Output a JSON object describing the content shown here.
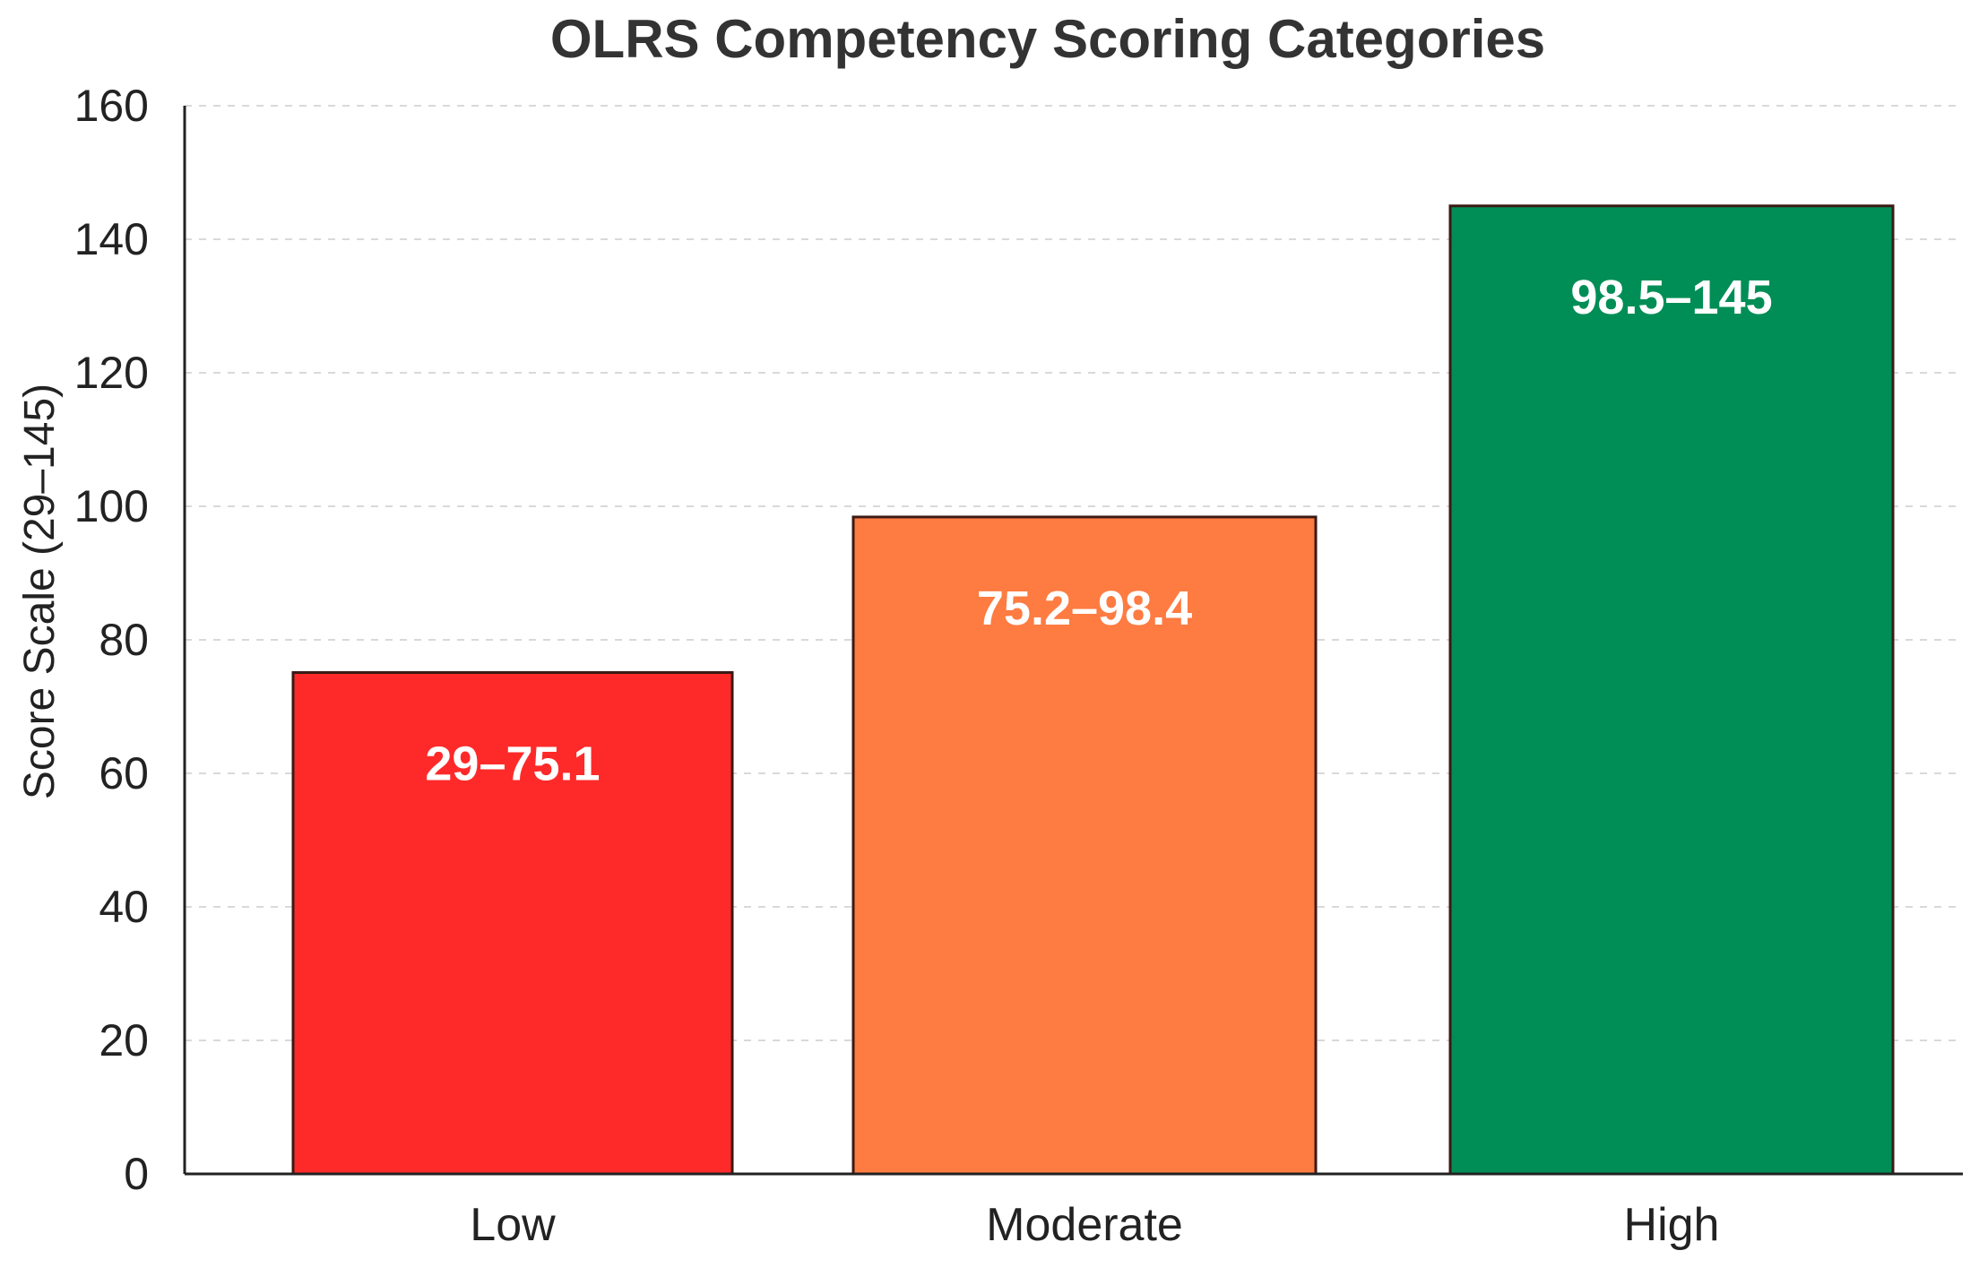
{
  "chart_data": {
    "type": "bar",
    "title": "OLRS Competency Scoring Categories",
    "xlabel": "",
    "ylabel": "Score Scale (29–145)",
    "ylim": [
      0,
      160
    ],
    "yticks": [
      0,
      20,
      40,
      60,
      80,
      100,
      120,
      140,
      160
    ],
    "grid": true,
    "categories": [
      "Low",
      "Moderate",
      "High"
    ],
    "values": [
      75.1,
      98.4,
      145
    ],
    "bar_labels": [
      "29–75.1",
      "75.2–98.4",
      "98.5–145"
    ],
    "colors": [
      "#fe2a29",
      "#fe7b41",
      "#018e56"
    ]
  }
}
